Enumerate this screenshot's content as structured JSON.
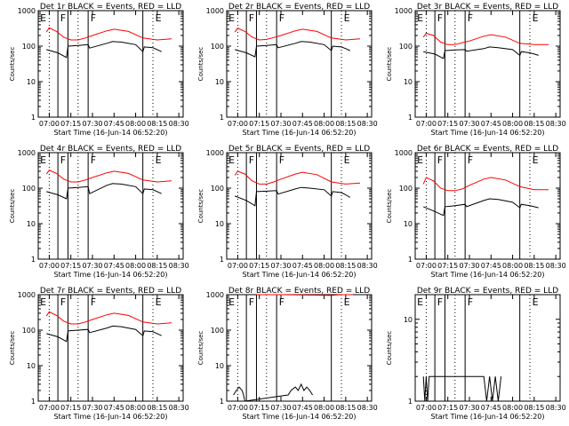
{
  "figure": {
    "shared_xlabel": "Start Time (16-Jun-14 06:52:20)",
    "shared_ylabel": "Counts/sec",
    "x_ticks": [
      "07:00",
      "07:15",
      "07:30",
      "07:45",
      "08:00",
      "08:15",
      "08:30"
    ],
    "y_ticks": [
      "1",
      "10",
      "100",
      "1000"
    ],
    "colors": {
      "events": "#000000",
      "lld": "#ff0000",
      "axes": "#000000"
    }
  },
  "chart_data": [
    {
      "type": "line",
      "title": "Det 1r BLACK = Events, RED = LLD",
      "x_range": [
        "06:52:20",
        "08:33:00"
      ],
      "y_log": true,
      "ylim": [
        1,
        1000
      ],
      "vlines_solid": [
        "07:06",
        "07:13",
        "07:27",
        "08:05"
      ],
      "vlines_dotted": [
        "07:00",
        "07:20",
        "08:12"
      ],
      "markers": [
        {
          "label": "E",
          "time": "06:53"
        },
        {
          "label": "F",
          "time": "07:07"
        },
        {
          "label": "F",
          "time": "07:28"
        },
        {
          "label": "E",
          "time": "08:13"
        }
      ],
      "series": [
        {
          "name": "Events",
          "color": "#000000",
          "x": [
            "06:58",
            "07:06",
            "07:12",
            "07:13",
            "07:20",
            "07:27",
            "07:28",
            "07:40",
            "07:44",
            "07:50",
            "08:00",
            "08:05",
            "08:06",
            "08:12",
            "08:15",
            "08:18"
          ],
          "y": [
            80,
            65,
            48,
            100,
            105,
            110,
            88,
            120,
            135,
            130,
            110,
            70,
            95,
            90,
            80,
            70
          ]
        },
        {
          "name": "LLD",
          "color": "#ff0000",
          "x": [
            "06:58",
            "07:00",
            "07:05",
            "07:10",
            "07:15",
            "07:20",
            "07:25",
            "07:30",
            "07:40",
            "07:45",
            "07:55",
            "08:05",
            "08:15",
            "08:25"
          ],
          "y": [
            250,
            330,
            260,
            180,
            150,
            150,
            170,
            200,
            270,
            300,
            260,
            170,
            150,
            160
          ]
        }
      ]
    },
    {
      "type": "line",
      "title": "Det 2r BLACK = Events, RED = LLD",
      "x_range": [
        "06:52:20",
        "08:33:00"
      ],
      "y_log": true,
      "ylim": [
        1,
        1000
      ],
      "vlines_solid": [
        "07:06",
        "07:13",
        "07:27",
        "08:05"
      ],
      "vlines_dotted": [
        "07:00",
        "07:20",
        "08:12"
      ],
      "markers": [
        {
          "label": "E",
          "time": "06:53"
        },
        {
          "label": "F",
          "time": "07:07"
        },
        {
          "label": "F",
          "time": "07:28"
        },
        {
          "label": "E",
          "time": "08:13"
        }
      ],
      "series": [
        {
          "name": "Events",
          "color": "#000000",
          "x": [
            "06:58",
            "07:06",
            "07:12",
            "07:13",
            "07:20",
            "07:27",
            "07:28",
            "07:40",
            "07:44",
            "07:50",
            "08:00",
            "08:05",
            "08:06",
            "08:12",
            "08:15",
            "08:18"
          ],
          "y": [
            80,
            65,
            50,
            100,
            105,
            110,
            90,
            120,
            135,
            130,
            110,
            75,
            100,
            95,
            85,
            75
          ]
        },
        {
          "name": "LLD",
          "color": "#ff0000",
          "x": [
            "06:58",
            "07:00",
            "07:05",
            "07:10",
            "07:15",
            "07:20",
            "07:25",
            "07:30",
            "07:40",
            "07:45",
            "07:55",
            "08:05",
            "08:15",
            "08:25"
          ],
          "y": [
            250,
            320,
            260,
            180,
            150,
            155,
            175,
            200,
            270,
            300,
            260,
            170,
            150,
            160
          ]
        }
      ]
    },
    {
      "type": "line",
      "title": "Det 3r BLACK = Events, RED = LLD",
      "x_range": [
        "06:52:20",
        "08:33:00"
      ],
      "y_log": true,
      "ylim": [
        1,
        1000
      ],
      "vlines_solid": [
        "07:06",
        "07:13",
        "07:27",
        "08:05"
      ],
      "vlines_dotted": [
        "07:00",
        "07:20",
        "08:12"
      ],
      "markers": [
        {
          "label": "E",
          "time": "06:53"
        },
        {
          "label": "F",
          "time": "07:07"
        },
        {
          "label": "F",
          "time": "07:28"
        },
        {
          "label": "E",
          "time": "08:13"
        }
      ],
      "series": [
        {
          "name": "Events",
          "color": "#000000",
          "x": [
            "06:58",
            "07:06",
            "07:12",
            "07:13",
            "07:20",
            "07:27",
            "07:28",
            "07:40",
            "07:44",
            "07:50",
            "08:00",
            "08:05",
            "08:06",
            "08:12",
            "08:15",
            "08:18"
          ],
          "y": [
            70,
            60,
            45,
            75,
            78,
            80,
            72,
            85,
            95,
            90,
            80,
            55,
            70,
            65,
            60,
            55
          ]
        },
        {
          "name": "LLD",
          "color": "#ff0000",
          "x": [
            "06:58",
            "07:00",
            "07:05",
            "07:10",
            "07:15",
            "07:20",
            "07:25",
            "07:30",
            "07:40",
            "07:45",
            "07:55",
            "08:05",
            "08:15",
            "08:25"
          ],
          "y": [
            180,
            230,
            200,
            130,
            110,
            110,
            125,
            140,
            190,
            210,
            180,
            120,
            110,
            110
          ]
        }
      ]
    },
    {
      "type": "line",
      "title": "Det 4r BLACK = Events, RED = LLD",
      "x_range": [
        "06:52:20",
        "08:33:00"
      ],
      "y_log": true,
      "ylim": [
        1,
        1000
      ],
      "vlines_solid": [
        "07:06",
        "07:13",
        "07:27",
        "08:05"
      ],
      "vlines_dotted": [
        "07:00",
        "07:20",
        "08:12"
      ],
      "markers": [
        {
          "label": "E",
          "time": "06:53"
        },
        {
          "label": "F",
          "time": "07:07"
        },
        {
          "label": "F",
          "time": "07:28"
        },
        {
          "label": "E",
          "time": "08:13"
        }
      ],
      "series": [
        {
          "name": "Events",
          "color": "#000000",
          "x": [
            "06:58",
            "07:06",
            "07:12",
            "07:13",
            "07:20",
            "07:27",
            "07:28",
            "07:40",
            "07:44",
            "07:50",
            "08:00",
            "08:05",
            "08:06",
            "08:12",
            "08:15",
            "08:18"
          ],
          "y": [
            80,
            65,
            50,
            100,
            105,
            110,
            70,
            120,
            135,
            130,
            110,
            70,
            95,
            90,
            80,
            70
          ]
        },
        {
          "name": "LLD",
          "color": "#ff0000",
          "x": [
            "06:58",
            "07:00",
            "07:05",
            "07:10",
            "07:15",
            "07:20",
            "07:25",
            "07:30",
            "07:40",
            "07:45",
            "07:55",
            "08:05",
            "08:15",
            "08:25"
          ],
          "y": [
            250,
            320,
            260,
            180,
            150,
            150,
            170,
            200,
            270,
            300,
            260,
            170,
            150,
            160
          ]
        }
      ]
    },
    {
      "type": "line",
      "title": "Det 5r BLACK = Events, RED = LLD",
      "x_range": [
        "06:52:20",
        "08:33:00"
      ],
      "y_log": true,
      "ylim": [
        1,
        1000
      ],
      "vlines_solid": [
        "07:06",
        "07:13",
        "07:27",
        "08:05"
      ],
      "vlines_dotted": [
        "07:00",
        "07:20",
        "08:12"
      ],
      "markers": [
        {
          "label": "E",
          "time": "06:53"
        },
        {
          "label": "F",
          "time": "07:07"
        },
        {
          "label": "F",
          "time": "07:28"
        },
        {
          "label": "E",
          "time": "08:13"
        }
      ],
      "series": [
        {
          "name": "Events",
          "color": "#000000",
          "x": [
            "06:58",
            "07:06",
            "07:12",
            "07:13",
            "07:20",
            "07:27",
            "07:28",
            "07:40",
            "07:44",
            "07:50",
            "08:00",
            "08:05",
            "08:06",
            "08:12",
            "08:15",
            "08:18"
          ],
          "y": [
            60,
            45,
            32,
            80,
            82,
            85,
            68,
            95,
            105,
            100,
            90,
            60,
            80,
            75,
            65,
            55
          ]
        },
        {
          "name": "LLD",
          "color": "#ff0000",
          "x": [
            "06:58",
            "07:00",
            "07:05",
            "07:10",
            "07:15",
            "07:20",
            "07:25",
            "07:30",
            "07:40",
            "07:45",
            "07:55",
            "08:05",
            "08:15",
            "08:25"
          ],
          "y": [
            230,
            300,
            250,
            160,
            130,
            130,
            150,
            180,
            250,
            280,
            240,
            150,
            130,
            140
          ]
        }
      ]
    },
    {
      "type": "line",
      "title": "Det 6r BLACK = Events, RED = LLD",
      "x_range": [
        "06:52:20",
        "08:33:00"
      ],
      "y_log": true,
      "ylim": [
        1,
        1000
      ],
      "vlines_solid": [
        "07:06",
        "07:13",
        "07:27",
        "08:05"
      ],
      "vlines_dotted": [
        "07:00",
        "07:20",
        "08:12"
      ],
      "markers": [
        {
          "label": "E",
          "time": "06:53"
        },
        {
          "label": "F",
          "time": "07:07"
        },
        {
          "label": "F",
          "time": "07:28"
        },
        {
          "label": "E",
          "time": "08:13"
        }
      ],
      "series": [
        {
          "name": "Events",
          "color": "#000000",
          "x": [
            "06:58",
            "07:06",
            "07:12",
            "07:13",
            "07:20",
            "07:27",
            "07:28",
            "07:40",
            "07:44",
            "07:50",
            "08:00",
            "08:05",
            "08:06",
            "08:12",
            "08:15",
            "08:18"
          ],
          "y": [
            30,
            22,
            17,
            30,
            32,
            35,
            30,
            45,
            50,
            48,
            40,
            28,
            35,
            32,
            30,
            28
          ]
        },
        {
          "name": "LLD",
          "color": "#ff0000",
          "x": [
            "06:58",
            "07:00",
            "07:05",
            "07:10",
            "07:15",
            "07:20",
            "07:25",
            "07:30",
            "07:40",
            "07:45",
            "07:55",
            "08:05",
            "08:15",
            "08:25"
          ],
          "y": [
            130,
            200,
            160,
            100,
            85,
            85,
            95,
            120,
            180,
            200,
            170,
            110,
            90,
            90
          ]
        }
      ]
    },
    {
      "type": "line",
      "title": "Det 7r BLACK = Events, RED = LLD",
      "x_range": [
        "06:52:20",
        "08:33:00"
      ],
      "y_log": true,
      "ylim": [
        1,
        1000
      ],
      "vlines_solid": [
        "07:06",
        "07:13",
        "07:27",
        "08:05"
      ],
      "vlines_dotted": [
        "07:00",
        "07:20",
        "08:12"
      ],
      "markers": [
        {
          "label": "E",
          "time": "06:53"
        },
        {
          "label": "F",
          "time": "07:07"
        },
        {
          "label": "F",
          "time": "07:28"
        },
        {
          "label": "E",
          "time": "08:13"
        }
      ],
      "series": [
        {
          "name": "Events",
          "color": "#000000",
          "x": [
            "06:58",
            "07:06",
            "07:12",
            "07:13",
            "07:20",
            "07:27",
            "07:28",
            "07:40",
            "07:44",
            "07:50",
            "08:00",
            "08:05",
            "08:06",
            "08:12",
            "08:15",
            "08:18"
          ],
          "y": [
            80,
            65,
            48,
            95,
            100,
            105,
            85,
            115,
            130,
            125,
            105,
            70,
            95,
            90,
            80,
            70
          ]
        },
        {
          "name": "LLD",
          "color": "#ff0000",
          "x": [
            "06:58",
            "07:00",
            "07:05",
            "07:10",
            "07:15",
            "07:20",
            "07:25",
            "07:30",
            "07:40",
            "07:45",
            "07:55",
            "08:05",
            "08:15",
            "08:25"
          ],
          "y": [
            250,
            330,
            260,
            180,
            150,
            150,
            170,
            200,
            270,
            300,
            260,
            170,
            150,
            160
          ]
        }
      ]
    },
    {
      "type": "line",
      "title": "Det 8r BLACK = Events, RED = LLD",
      "x_range": [
        "06:52:20",
        "08:33:00"
      ],
      "y_log": true,
      "ylim": [
        1,
        1000
      ],
      "vlines_solid": [
        "07:06",
        "07:13",
        "07:27",
        "08:05"
      ],
      "vlines_dotted": [
        "07:00",
        "07:20",
        "08:12"
      ],
      "markers": [
        {
          "label": "E",
          "time": "06:53"
        },
        {
          "label": "F",
          "time": "07:07"
        },
        {
          "label": "F",
          "time": "07:28"
        },
        {
          "label": "E",
          "time": "08:13"
        }
      ],
      "series": [
        {
          "name": "Events",
          "color": "#000000",
          "x": [
            "06:57",
            "06:59",
            "07:01",
            "07:03",
            "07:04",
            "07:05",
            "07:35",
            "07:37",
            "07:40",
            "07:42",
            "07:44",
            "07:46",
            "07:48",
            "07:50",
            "07:52"
          ],
          "y": [
            1.5,
            2,
            2.5,
            2,
            1.5,
            1,
            1.5,
            2,
            2.5,
            2,
            3,
            2,
            2.5,
            2,
            1.5
          ]
        },
        {
          "name": "LLD",
          "color": "#ff0000",
          "x": [
            "07:13",
            "07:20",
            "07:27",
            "07:30",
            "08:05",
            "08:12",
            "08:20"
          ],
          "y": [
            1000,
            1000,
            1000,
            1000,
            950,
            1000,
            1000
          ]
        }
      ]
    },
    {
      "type": "line",
      "title": "Det 9r BLACK = Events, RED = LLD",
      "x_range": [
        "06:52:20",
        "08:33:00"
      ],
      "y_log": true,
      "ylim": [
        1,
        20
      ],
      "y_ticks": [
        "1",
        "10"
      ],
      "vlines_solid": [
        "07:06",
        "07:13",
        "07:27",
        "08:05"
      ],
      "vlines_dotted": [
        "07:00",
        "07:20",
        "08:12"
      ],
      "markers": [
        {
          "label": "E",
          "time": "06:53"
        },
        {
          "label": "F",
          "time": "07:07"
        },
        {
          "label": "F",
          "time": "07:28"
        },
        {
          "label": "E",
          "time": "08:13"
        }
      ],
      "series": [
        {
          "name": "Events",
          "color": "#000000",
          "x": [
            "06:58",
            "06:59",
            "07:00",
            "07:01",
            "07:02",
            "07:40",
            "07:42",
            "07:44",
            "07:46",
            "07:48",
            "07:50",
            "07:52"
          ],
          "y": [
            2,
            1,
            2,
            1,
            2,
            2,
            1,
            2,
            1,
            2,
            1,
            2
          ]
        }
      ]
    }
  ]
}
